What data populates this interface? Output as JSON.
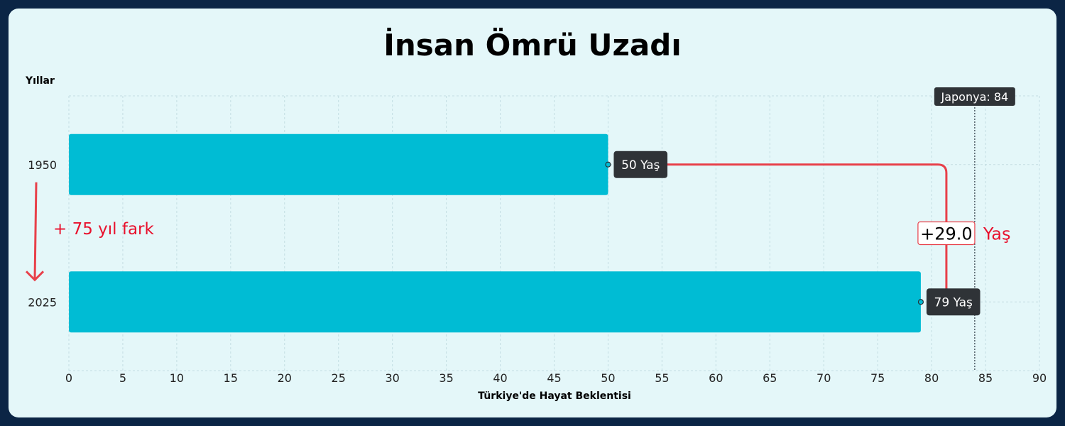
{
  "chart_data": {
    "type": "bar",
    "orientation": "horizontal",
    "title": "İnsan Ömrü Uzadı",
    "xlabel": "Türkiye'de Hayat Beklentisi",
    "ylabel": "Yıllar",
    "categories": [
      "1950",
      "2025"
    ],
    "values": [
      50,
      79
    ],
    "value_labels": [
      "50 Yaş",
      "79 Yaş"
    ],
    "xlim": [
      0,
      90
    ],
    "xticks": [
      0,
      5,
      10,
      15,
      20,
      25,
      30,
      35,
      40,
      45,
      50,
      55,
      60,
      65,
      70,
      75,
      80,
      85,
      90
    ],
    "grid": true,
    "bar_color": "#00bcd4",
    "reference_line": {
      "value": 84,
      "label": "Japonya: 84"
    },
    "difference": {
      "value_text": "+29.0",
      "unit_text": "Yaş",
      "color": "#e8404a"
    },
    "year_gap_text": "+ 75 yıl fark"
  }
}
